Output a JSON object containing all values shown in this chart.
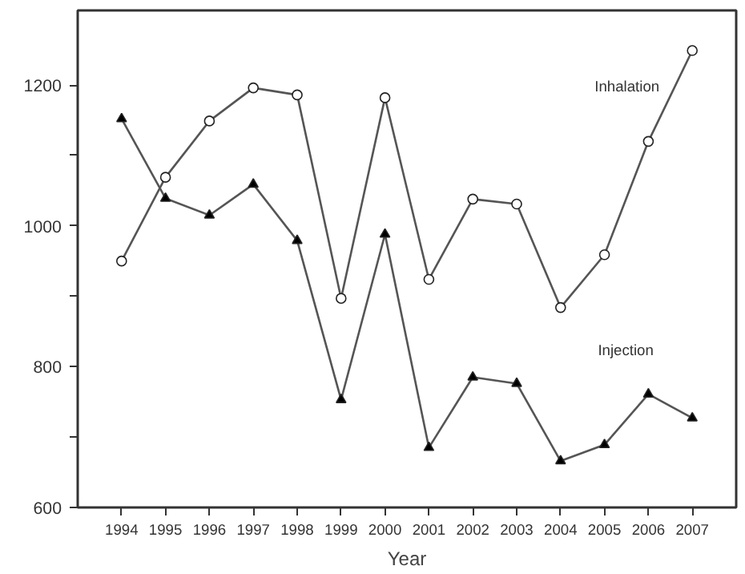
{
  "chart_data": {
    "type": "line",
    "xlabel": "Year",
    "x": [
      1994,
      1995,
      1996,
      1997,
      1998,
      1999,
      2000,
      2001,
      2002,
      2003,
      2004,
      2005,
      2006,
      2007
    ],
    "series": [
      {
        "name": "Inhalation",
        "color": "#555555",
        "marker": "circle",
        "values": [
          950,
          1069,
          1149,
          1196,
          1186,
          897,
          1182,
          924,
          1038,
          1031,
          884,
          959,
          1120,
          1249
        ]
      },
      {
        "name": "Injection",
        "color": "#555555",
        "marker": "triangle",
        "values": [
          1152,
          1039,
          1015,
          1059,
          979,
          753,
          988,
          685,
          785,
          776,
          666,
          689,
          761,
          727
        ]
      }
    ],
    "xlim": [
      1993,
      2008
    ],
    "xticks": [
      1994,
      1995,
      1996,
      1997,
      1998,
      1999,
      2000,
      2001,
      2002,
      2003,
      2004,
      2005,
      2006,
      2007
    ],
    "ylim": [
      600,
      1306
    ],
    "yticks": [
      600,
      {
        "value": 700,
        "label": null
      },
      800,
      {
        "value": 900,
        "label": null
      },
      1000,
      {
        "value": 1100,
        "label": null
      },
      1200
    ],
    "grid": false,
    "line_style": "solid"
  }
}
